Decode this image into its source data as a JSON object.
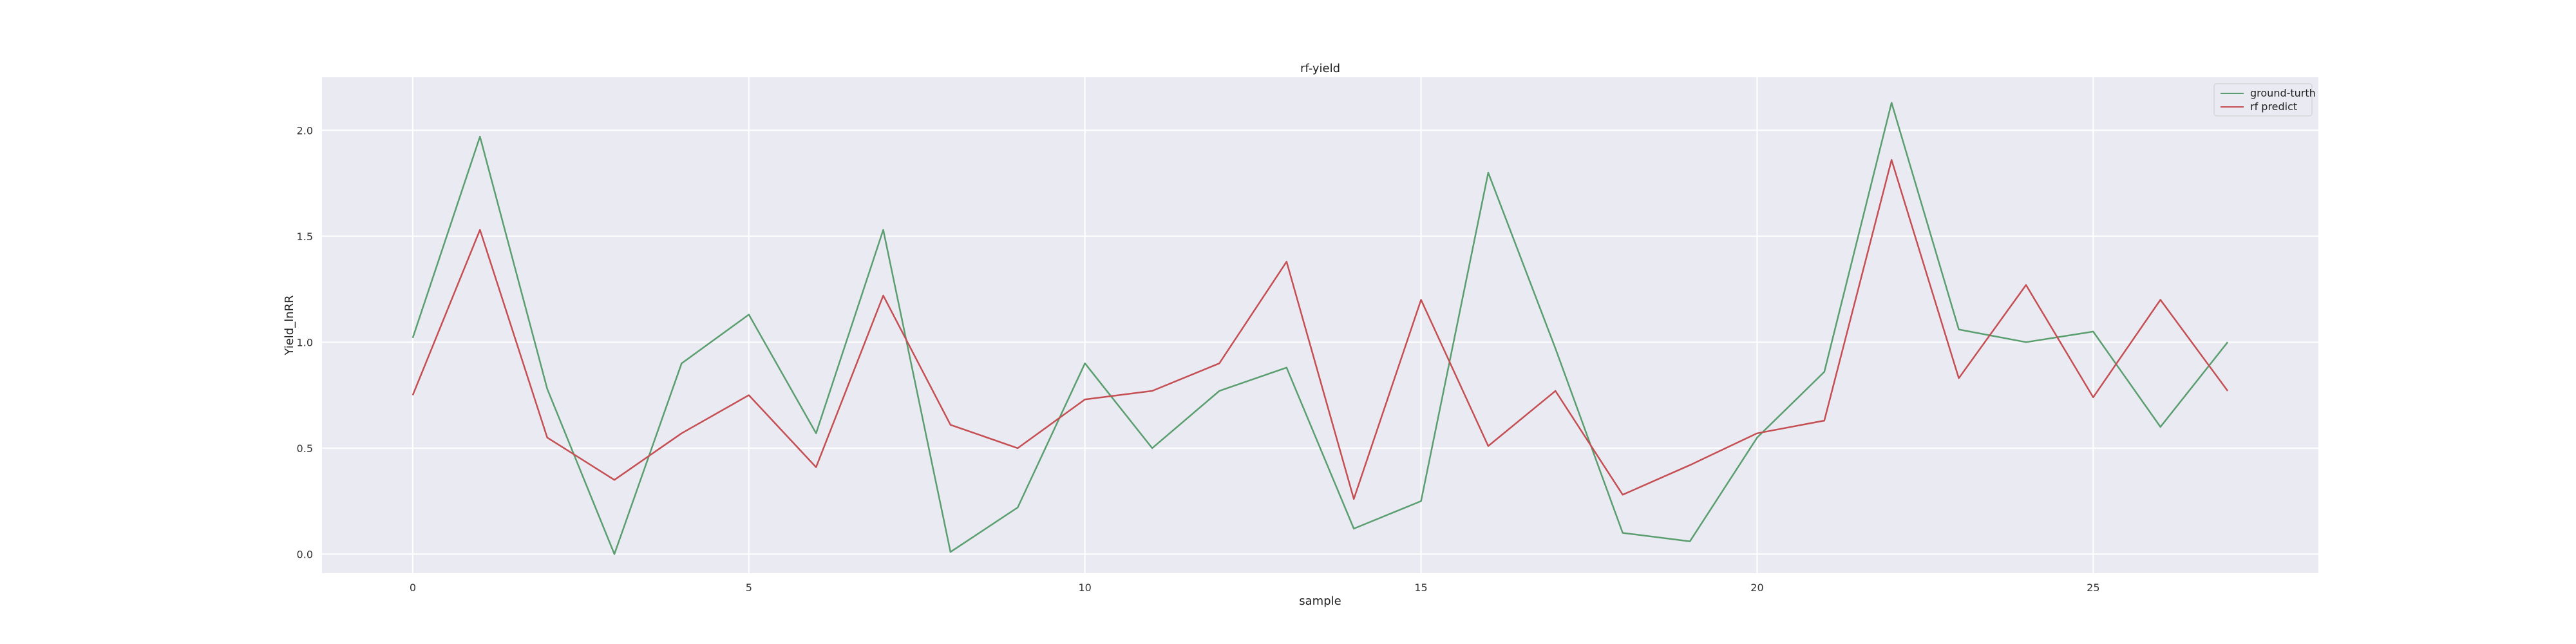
{
  "chart_data": {
    "type": "line",
    "title": "rf-yield",
    "xlabel": "sample",
    "ylabel": "Yield_lnRR",
    "xlim": [
      -1.35,
      28.35
    ],
    "ylim": [
      -0.09,
      2.25
    ],
    "x_ticks": [
      0,
      5,
      10,
      15,
      20,
      25
    ],
    "y_ticks": [
      0.0,
      0.5,
      1.0,
      1.5,
      2.0
    ],
    "x_tick_labels": [
      "0",
      "5",
      "10",
      "15",
      "20",
      "25"
    ],
    "y_tick_labels": [
      "0.0",
      "0.5",
      "1.0",
      "1.5",
      "2.0"
    ],
    "grid": true,
    "legend_position": "top-right",
    "x": [
      0,
      1,
      2,
      3,
      4,
      5,
      6,
      7,
      8,
      9,
      10,
      11,
      12,
      13,
      14,
      15,
      16,
      17,
      18,
      19,
      20,
      21,
      22,
      23,
      24,
      25,
      26,
      27
    ],
    "series": [
      {
        "name": "ground-turth",
        "color": "#5a9e6f",
        "values": [
          1.02,
          1.97,
          0.78,
          0.0,
          0.9,
          1.13,
          0.57,
          1.53,
          0.01,
          0.22,
          0.9,
          0.5,
          0.77,
          0.88,
          0.12,
          0.25,
          1.8,
          0.97,
          0.1,
          0.06,
          0.55,
          0.86,
          2.13,
          1.06,
          1.0,
          1.05,
          0.6,
          1.0
        ]
      },
      {
        "name": "rf predict",
        "color": "#c44e52",
        "values": [
          0.75,
          1.53,
          0.55,
          0.35,
          0.57,
          0.75,
          0.41,
          1.22,
          0.61,
          0.5,
          0.73,
          0.77,
          0.9,
          1.38,
          0.26,
          1.2,
          0.51,
          0.77,
          0.28,
          0.42,
          0.57,
          0.63,
          1.86,
          0.83,
          1.27,
          0.74,
          1.2,
          0.77
        ]
      }
    ]
  },
  "style": {
    "plot_background": "#eaeaf2",
    "grid_color": "#ffffff"
  }
}
